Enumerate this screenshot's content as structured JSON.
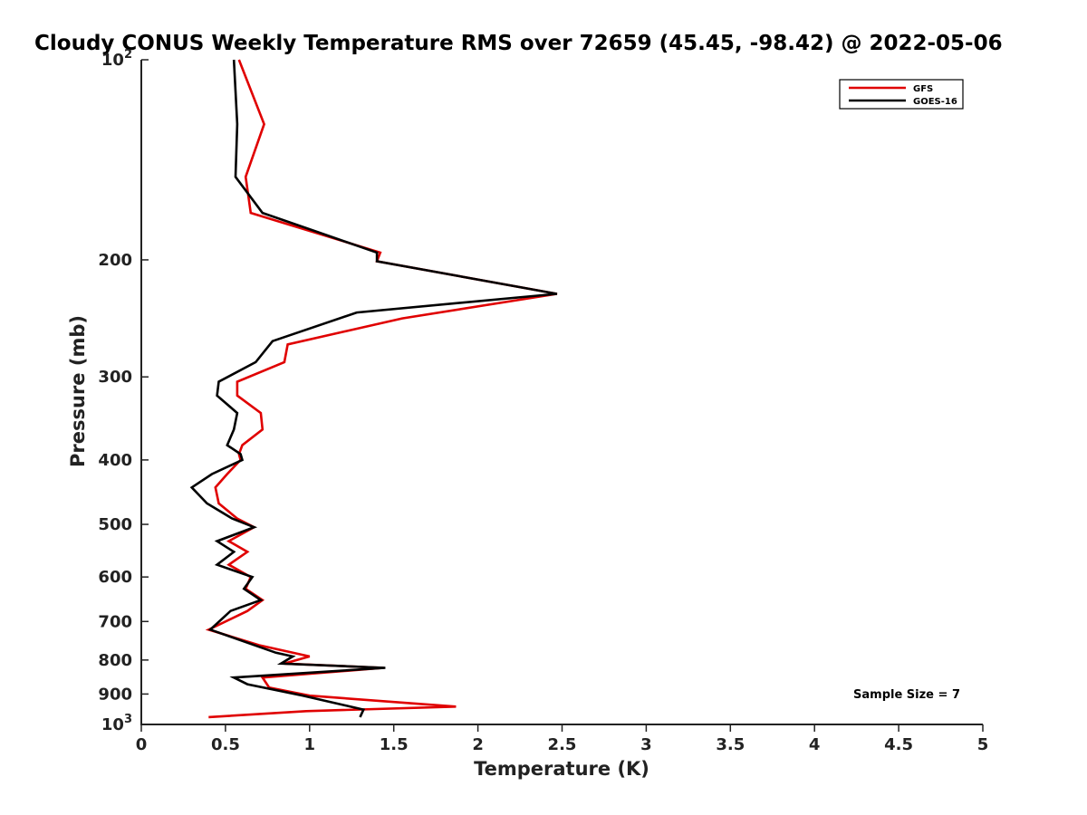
{
  "chart_data": {
    "type": "line",
    "title": "Cloudy CONUS Weekly Temperature RMS over 72659 (45.45, -98.42) @ 2022-05-06",
    "xlabel": "Temperature (K)",
    "ylabel": "Pressure (mb)",
    "xlim": [
      0,
      5
    ],
    "ylim": [
      100,
      1000
    ],
    "y_scale": "log",
    "y_reversed": true,
    "x_ticks": [
      {
        "value": 0,
        "label": "0"
      },
      {
        "value": 0.5,
        "label": "0.5"
      },
      {
        "value": 1,
        "label": "1"
      },
      {
        "value": 1.5,
        "label": "1.5"
      },
      {
        "value": 2,
        "label": "2"
      },
      {
        "value": 2.5,
        "label": "2.5"
      },
      {
        "value": 3,
        "label": "3"
      },
      {
        "value": 3.5,
        "label": "3.5"
      },
      {
        "value": 4,
        "label": "4"
      },
      {
        "value": 4.5,
        "label": "4.5"
      },
      {
        "value": 5,
        "label": "5"
      }
    ],
    "y_ticks": [
      {
        "value": 100,
        "label": "10",
        "sup": "2"
      },
      {
        "value": 200,
        "label": "200"
      },
      {
        "value": 300,
        "label": "300"
      },
      {
        "value": 400,
        "label": "400"
      },
      {
        "value": 500,
        "label": "500"
      },
      {
        "value": 600,
        "label": "600"
      },
      {
        "value": 700,
        "label": "700"
      },
      {
        "value": 800,
        "label": "800"
      },
      {
        "value": 900,
        "label": "900"
      },
      {
        "value": 1000,
        "label": "10",
        "sup": "3"
      }
    ],
    "grid": false,
    "legend_position": "top-right",
    "annotation": "Sample Size = 7",
    "series": [
      {
        "name": "GFS",
        "color": "#e00000",
        "points": [
          [
            0.58,
            100
          ],
          [
            0.73,
            125
          ],
          [
            0.62,
            150
          ],
          [
            0.65,
            170
          ],
          [
            1.42,
            195
          ],
          [
            1.4,
            201
          ],
          [
            2.47,
            225
          ],
          [
            1.55,
            245
          ],
          [
            0.87,
            268
          ],
          [
            0.85,
            285
          ],
          [
            0.57,
            305
          ],
          [
            0.57,
            320
          ],
          [
            0.71,
            340
          ],
          [
            0.72,
            360
          ],
          [
            0.6,
            380
          ],
          [
            0.58,
            392
          ],
          [
            0.59,
            400
          ],
          [
            0.51,
            420
          ],
          [
            0.44,
            440
          ],
          [
            0.46,
            465
          ],
          [
            0.57,
            490
          ],
          [
            0.67,
            505
          ],
          [
            0.52,
            530
          ],
          [
            0.63,
            550
          ],
          [
            0.52,
            575
          ],
          [
            0.65,
            600
          ],
          [
            0.62,
            625
          ],
          [
            0.72,
            650
          ],
          [
            0.63,
            675
          ],
          [
            0.4,
            720
          ],
          [
            0.7,
            760
          ],
          [
            1.0,
            790
          ],
          [
            0.85,
            810
          ],
          [
            1.44,
            822
          ],
          [
            0.72,
            850
          ],
          [
            0.76,
            880
          ],
          [
            1.0,
            905
          ],
          [
            1.87,
            940
          ],
          [
            0.98,
            955
          ],
          [
            0.4,
            975
          ]
        ]
      },
      {
        "name": "GOES-16",
        "color": "#000000",
        "points": [
          [
            0.55,
            100
          ],
          [
            0.57,
            125
          ],
          [
            0.56,
            150
          ],
          [
            0.72,
            170
          ],
          [
            1.4,
            195
          ],
          [
            1.4,
            201
          ],
          [
            2.47,
            225
          ],
          [
            1.28,
            240
          ],
          [
            0.78,
            265
          ],
          [
            0.68,
            285
          ],
          [
            0.46,
            305
          ],
          [
            0.45,
            320
          ],
          [
            0.57,
            340
          ],
          [
            0.55,
            360
          ],
          [
            0.51,
            380
          ],
          [
            0.59,
            392
          ],
          [
            0.6,
            400
          ],
          [
            0.42,
            420
          ],
          [
            0.3,
            440
          ],
          [
            0.39,
            465
          ],
          [
            0.54,
            490
          ],
          [
            0.67,
            505
          ],
          [
            0.45,
            530
          ],
          [
            0.55,
            550
          ],
          [
            0.45,
            575
          ],
          [
            0.66,
            600
          ],
          [
            0.61,
            625
          ],
          [
            0.71,
            650
          ],
          [
            0.53,
            675
          ],
          [
            0.41,
            720
          ],
          [
            0.8,
            780
          ],
          [
            0.9,
            790
          ],
          [
            0.83,
            810
          ],
          [
            1.45,
            822
          ],
          [
            0.55,
            850
          ],
          [
            0.63,
            870
          ],
          [
            0.96,
            905
          ],
          [
            1.08,
            920
          ],
          [
            1.32,
            950
          ],
          [
            1.3,
            975
          ]
        ]
      }
    ]
  }
}
